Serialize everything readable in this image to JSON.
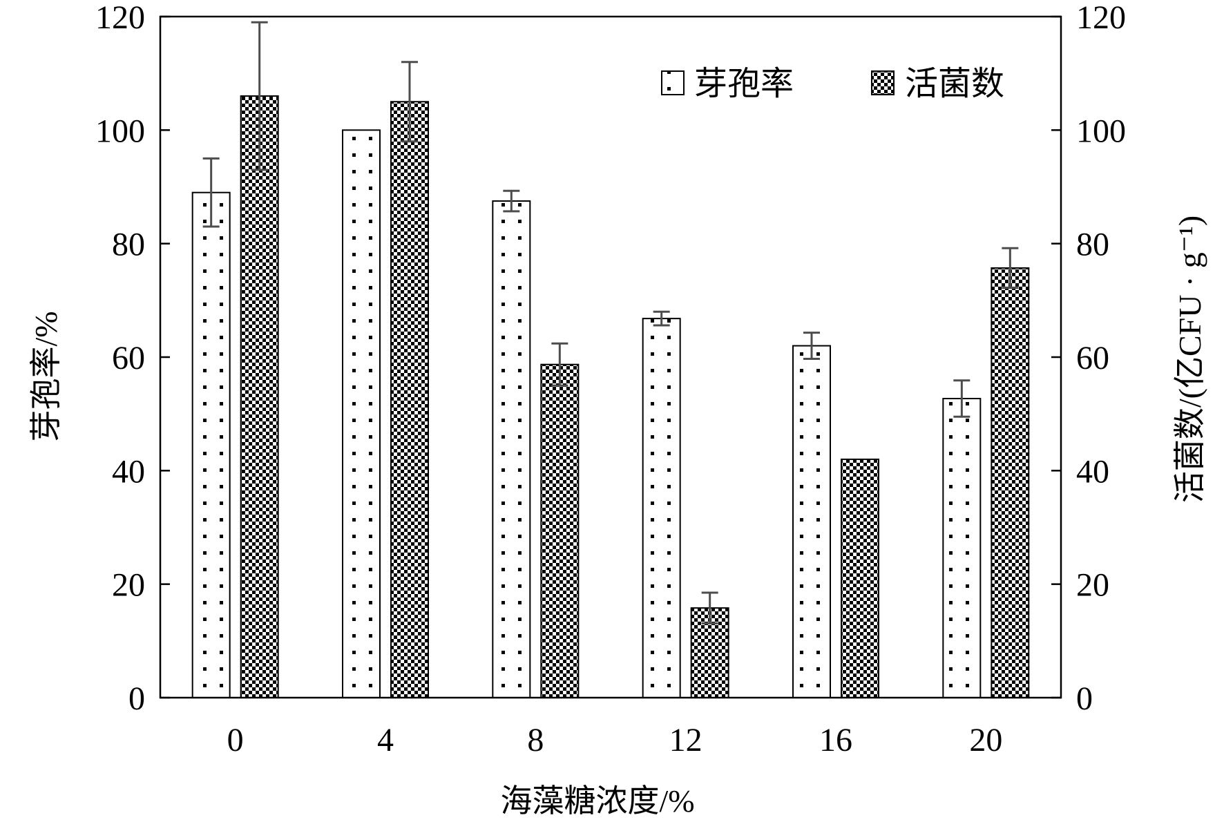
{
  "chart_data": {
    "type": "bar",
    "categories": [
      "0",
      "4",
      "8",
      "12",
      "16",
      "20"
    ],
    "xlabel": "海藻糖浓度/%",
    "ylabel_left": "芽孢率/%",
    "ylabel_right": "活菌数/(亿CFU · g⁻¹)",
    "ylim_left": [
      0,
      120
    ],
    "ylim_right": [
      0,
      120
    ],
    "yticks_left": [
      "0",
      "20",
      "40",
      "60",
      "80",
      "100",
      "120"
    ],
    "yticks_right": [
      "0",
      "20",
      "40",
      "60",
      "80",
      "100",
      "120"
    ],
    "legend_position": "top-right",
    "grid": false,
    "series": [
      {
        "name": "芽孢率",
        "axis": "left",
        "pattern": "dots",
        "values": [
          89,
          100,
          87.5,
          66.8,
          62,
          52.7
        ],
        "errors": [
          6,
          0,
          1.8,
          1.2,
          2.3,
          3.2
        ]
      },
      {
        "name": "活菌数",
        "axis": "right",
        "pattern": "checker",
        "values": [
          106,
          105,
          58.7,
          15.8,
          42,
          75.7
        ],
        "errors": [
          13,
          7,
          3.7,
          2.7,
          0,
          3.5
        ]
      }
    ],
    "colors": {
      "axis": "#000000",
      "error_bar": "#4d4d4d",
      "bar_fill": "#ffffff"
    }
  }
}
